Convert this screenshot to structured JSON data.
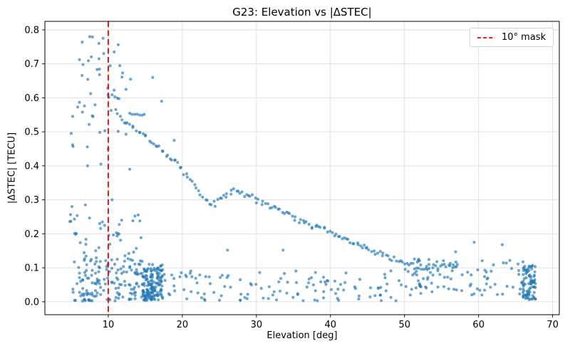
{
  "chart_data": {
    "type": "scatter",
    "title": "G23: Elevation vs |ΔSTEC|",
    "xlabel": "Elevation [deg]",
    "ylabel": "|ΔSTEC| [TECU]",
    "xlim": [
      1.44,
      70.9
    ],
    "ylim": [
      -0.038,
      0.825
    ],
    "xticks": [
      10,
      20,
      30,
      40,
      50,
      60,
      70
    ],
    "xtick_labels": [
      "10",
      "20",
      "30",
      "40",
      "50",
      "60",
      "70"
    ],
    "yticks": [
      0.0,
      0.1,
      0.2,
      0.3,
      0.4,
      0.5,
      0.6,
      0.7,
      0.8
    ],
    "ytick_labels": [
      "0.0",
      "0.1",
      "0.2",
      "0.3",
      "0.4",
      "0.5",
      "0.6",
      "0.7",
      "0.8"
    ],
    "grid": true,
    "grid_color": "#e0e0e0",
    "marker": {
      "color": "#1f77b4",
      "opacity": 0.65,
      "radius": 2.1
    },
    "vline": {
      "x": 10,
      "color": "#f00000",
      "style": "dashed",
      "width": 1.8
    },
    "legend": {
      "position": "upper right",
      "entries": [
        {
          "label": "10° mask",
          "color": "#f00000",
          "line": "dashed"
        }
      ]
    },
    "seed": 42,
    "n_points_approx": 880,
    "clusters": [
      {
        "type": "trail",
        "n": 165,
        "jitter_x": 0.22,
        "jitter_y": 0.011,
        "path": [
          [
            11.0,
            0.56
          ],
          [
            12.0,
            0.535
          ],
          [
            13.0,
            0.52
          ],
          [
            14.0,
            0.505
          ],
          [
            15.0,
            0.49
          ],
          [
            16.0,
            0.465
          ],
          [
            17.0,
            0.45
          ],
          [
            18.0,
            0.43
          ],
          [
            19.0,
            0.415
          ],
          [
            20.0,
            0.385
          ],
          [
            21.0,
            0.36
          ],
          [
            22.0,
            0.335
          ],
          [
            23.0,
            0.3
          ],
          [
            24.0,
            0.285
          ],
          [
            25.0,
            0.295
          ],
          [
            26.0,
            0.315
          ],
          [
            26.8,
            0.33
          ],
          [
            27.8,
            0.325
          ],
          [
            28.8,
            0.315
          ],
          [
            30.0,
            0.3
          ],
          [
            31.0,
            0.29
          ],
          [
            32.0,
            0.275
          ],
          [
            33.0,
            0.27
          ],
          [
            34.0,
            0.26
          ],
          [
            35.0,
            0.25
          ],
          [
            36.0,
            0.24
          ],
          [
            37.0,
            0.23
          ],
          [
            38.0,
            0.22
          ],
          [
            39.0,
            0.215
          ],
          [
            40.0,
            0.21
          ],
          [
            41.0,
            0.195
          ],
          [
            42.0,
            0.185
          ],
          [
            43.0,
            0.175
          ],
          [
            44.0,
            0.165
          ],
          [
            45.0,
            0.155
          ],
          [
            46.0,
            0.145
          ],
          [
            47.0,
            0.135
          ],
          [
            48.0,
            0.13
          ],
          [
            49.0,
            0.122
          ],
          [
            50.0,
            0.115
          ],
          [
            51.0,
            0.108
          ],
          [
            52.0,
            0.102
          ],
          [
            53.0,
            0.097
          ],
          [
            54.0,
            0.1
          ],
          [
            55.0,
            0.106
          ],
          [
            56.0,
            0.11
          ],
          [
            57.0,
            0.1
          ]
        ]
      },
      {
        "type": "trail",
        "n": 7,
        "jitter_x": 0.1,
        "jitter_y": 0.004,
        "path": [
          [
            12.9,
            0.556
          ],
          [
            14.9,
            0.548
          ]
        ]
      },
      {
        "type": "uniform",
        "n": 24,
        "x": [
          4.8,
          12.3
        ],
        "y": [
          0.58,
          0.78
        ]
      },
      {
        "type": "uniform",
        "n": 18,
        "x": [
          4.8,
          13.8
        ],
        "y": [
          0.44,
          0.58
        ]
      },
      {
        "type": "uniform",
        "n": 6,
        "x": [
          9.9,
          11.2
        ],
        "y": [
          0.595,
          0.63
        ]
      },
      {
        "type": "uniform",
        "n": 40,
        "x": [
          4.8,
          14.5
        ],
        "y": [
          0.125,
          0.265
        ],
        "bias": 1.35
      },
      {
        "type": "uniform",
        "n": 150,
        "x": [
          4.8,
          14.9
        ],
        "y": [
          0.002,
          0.125
        ],
        "bias": 1.25
      },
      {
        "type": "uniform",
        "n": 140,
        "x": [
          14.6,
          17.35
        ],
        "y": [
          0.002,
          0.098
        ],
        "bias": 1.05
      },
      {
        "type": "uniform",
        "n": 9,
        "x": [
          15.2,
          17.3
        ],
        "y": [
          0.096,
          0.114
        ]
      },
      {
        "type": "uniform",
        "n": 118,
        "x": [
          17.45,
          50.0
        ],
        "y": [
          0.002,
          0.092
        ],
        "bias": 1.25
      },
      {
        "type": "uniform",
        "n": 95,
        "x": [
          50.0,
          66.2
        ],
        "y": [
          0.018,
          0.128
        ]
      },
      {
        "type": "uniform",
        "n": 82,
        "x": [
          66.0,
          67.7
        ],
        "y": [
          0.004,
          0.106
        ]
      },
      {
        "type": "points",
        "pts": [
          [
            7.5,
            0.78
          ],
          [
            10.8,
            0.735
          ],
          [
            16.0,
            0.66
          ],
          [
            13.0,
            0.655
          ],
          [
            12.4,
            0.625
          ],
          [
            17.2,
            0.59
          ],
          [
            18.9,
            0.475
          ],
          [
            9.0,
            0.405
          ],
          [
            7.2,
            0.4
          ],
          [
            12.9,
            0.39
          ],
          [
            5.1,
            0.28
          ],
          [
            6.9,
            0.285
          ],
          [
            10.5,
            0.3
          ],
          [
            9.2,
            0.235
          ],
          [
            11.8,
            0.24
          ],
          [
            26.1,
            0.152
          ],
          [
            33.6,
            0.152
          ],
          [
            44.8,
            0.158
          ],
          [
            56.9,
            0.147
          ],
          [
            59.4,
            0.175
          ],
          [
            63.2,
            0.168
          ],
          [
            67.3,
            0.107
          ]
        ]
      }
    ]
  }
}
